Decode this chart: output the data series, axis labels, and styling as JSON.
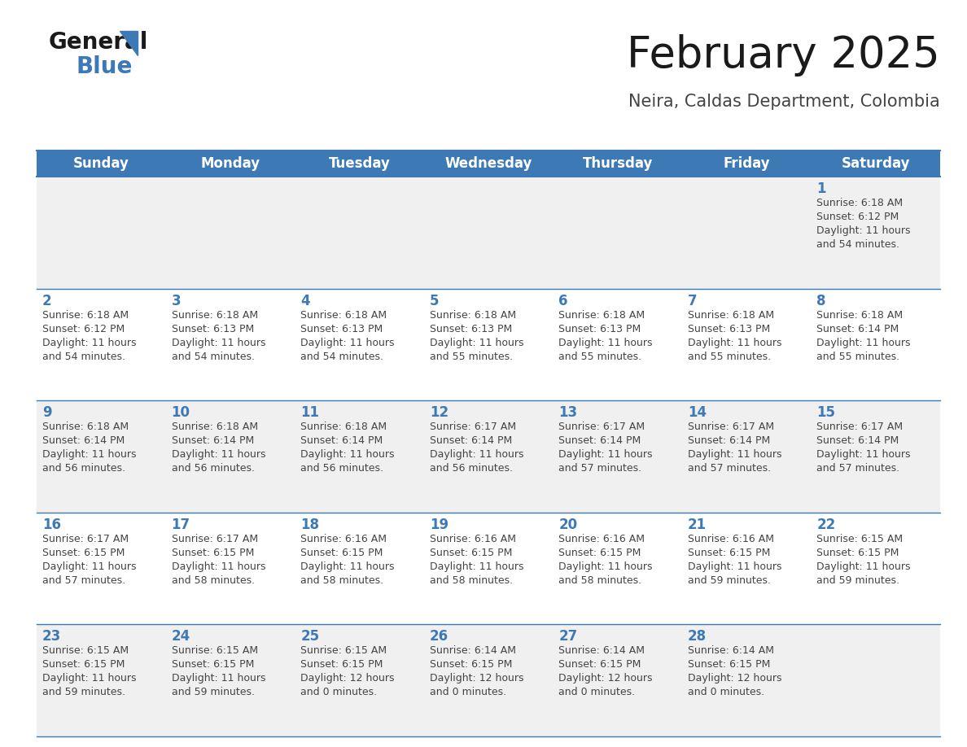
{
  "title": "February 2025",
  "subtitle": "Neira, Caldas Department, Colombia",
  "header_bg_color": "#3d7ab5",
  "header_text_color": "#ffffff",
  "row_bg_even": "#f0f0f0",
  "row_bg_odd": "#ffffff",
  "day_number_color": "#3d7ab5",
  "info_text_color": "#444444",
  "border_color": "#3d7ab5",
  "days_of_week": [
    "Sunday",
    "Monday",
    "Tuesday",
    "Wednesday",
    "Thursday",
    "Friday",
    "Saturday"
  ],
  "calendar_data": [
    [
      {
        "day": null,
        "sunrise": null,
        "sunset": null,
        "daylight_line1": null,
        "daylight_line2": null
      },
      {
        "day": null,
        "sunrise": null,
        "sunset": null,
        "daylight_line1": null,
        "daylight_line2": null
      },
      {
        "day": null,
        "sunrise": null,
        "sunset": null,
        "daylight_line1": null,
        "daylight_line2": null
      },
      {
        "day": null,
        "sunrise": null,
        "sunset": null,
        "daylight_line1": null,
        "daylight_line2": null
      },
      {
        "day": null,
        "sunrise": null,
        "sunset": null,
        "daylight_line1": null,
        "daylight_line2": null
      },
      {
        "day": null,
        "sunrise": null,
        "sunset": null,
        "daylight_line1": null,
        "daylight_line2": null
      },
      {
        "day": 1,
        "sunrise": "6:18 AM",
        "sunset": "6:12 PM",
        "daylight_line1": "11 hours",
        "daylight_line2": "and 54 minutes."
      }
    ],
    [
      {
        "day": 2,
        "sunrise": "6:18 AM",
        "sunset": "6:12 PM",
        "daylight_line1": "11 hours",
        "daylight_line2": "and 54 minutes."
      },
      {
        "day": 3,
        "sunrise": "6:18 AM",
        "sunset": "6:13 PM",
        "daylight_line1": "11 hours",
        "daylight_line2": "and 54 minutes."
      },
      {
        "day": 4,
        "sunrise": "6:18 AM",
        "sunset": "6:13 PM",
        "daylight_line1": "11 hours",
        "daylight_line2": "and 54 minutes."
      },
      {
        "day": 5,
        "sunrise": "6:18 AM",
        "sunset": "6:13 PM",
        "daylight_line1": "11 hours",
        "daylight_line2": "and 55 minutes."
      },
      {
        "day": 6,
        "sunrise": "6:18 AM",
        "sunset": "6:13 PM",
        "daylight_line1": "11 hours",
        "daylight_line2": "and 55 minutes."
      },
      {
        "day": 7,
        "sunrise": "6:18 AM",
        "sunset": "6:13 PM",
        "daylight_line1": "11 hours",
        "daylight_line2": "and 55 minutes."
      },
      {
        "day": 8,
        "sunrise": "6:18 AM",
        "sunset": "6:14 PM",
        "daylight_line1": "11 hours",
        "daylight_line2": "and 55 minutes."
      }
    ],
    [
      {
        "day": 9,
        "sunrise": "6:18 AM",
        "sunset": "6:14 PM",
        "daylight_line1": "11 hours",
        "daylight_line2": "and 56 minutes."
      },
      {
        "day": 10,
        "sunrise": "6:18 AM",
        "sunset": "6:14 PM",
        "daylight_line1": "11 hours",
        "daylight_line2": "and 56 minutes."
      },
      {
        "day": 11,
        "sunrise": "6:18 AM",
        "sunset": "6:14 PM",
        "daylight_line1": "11 hours",
        "daylight_line2": "and 56 minutes."
      },
      {
        "day": 12,
        "sunrise": "6:17 AM",
        "sunset": "6:14 PM",
        "daylight_line1": "11 hours",
        "daylight_line2": "and 56 minutes."
      },
      {
        "day": 13,
        "sunrise": "6:17 AM",
        "sunset": "6:14 PM",
        "daylight_line1": "11 hours",
        "daylight_line2": "and 57 minutes."
      },
      {
        "day": 14,
        "sunrise": "6:17 AM",
        "sunset": "6:14 PM",
        "daylight_line1": "11 hours",
        "daylight_line2": "and 57 minutes."
      },
      {
        "day": 15,
        "sunrise": "6:17 AM",
        "sunset": "6:14 PM",
        "daylight_line1": "11 hours",
        "daylight_line2": "and 57 minutes."
      }
    ],
    [
      {
        "day": 16,
        "sunrise": "6:17 AM",
        "sunset": "6:15 PM",
        "daylight_line1": "11 hours",
        "daylight_line2": "and 57 minutes."
      },
      {
        "day": 17,
        "sunrise": "6:17 AM",
        "sunset": "6:15 PM",
        "daylight_line1": "11 hours",
        "daylight_line2": "and 58 minutes."
      },
      {
        "day": 18,
        "sunrise": "6:16 AM",
        "sunset": "6:15 PM",
        "daylight_line1": "11 hours",
        "daylight_line2": "and 58 minutes."
      },
      {
        "day": 19,
        "sunrise": "6:16 AM",
        "sunset": "6:15 PM",
        "daylight_line1": "11 hours",
        "daylight_line2": "and 58 minutes."
      },
      {
        "day": 20,
        "sunrise": "6:16 AM",
        "sunset": "6:15 PM",
        "daylight_line1": "11 hours",
        "daylight_line2": "and 58 minutes."
      },
      {
        "day": 21,
        "sunrise": "6:16 AM",
        "sunset": "6:15 PM",
        "daylight_line1": "11 hours",
        "daylight_line2": "and 59 minutes."
      },
      {
        "day": 22,
        "sunrise": "6:15 AM",
        "sunset": "6:15 PM",
        "daylight_line1": "11 hours",
        "daylight_line2": "and 59 minutes."
      }
    ],
    [
      {
        "day": 23,
        "sunrise": "6:15 AM",
        "sunset": "6:15 PM",
        "daylight_line1": "11 hours",
        "daylight_line2": "and 59 minutes."
      },
      {
        "day": 24,
        "sunrise": "6:15 AM",
        "sunset": "6:15 PM",
        "daylight_line1": "11 hours",
        "daylight_line2": "and 59 minutes."
      },
      {
        "day": 25,
        "sunrise": "6:15 AM",
        "sunset": "6:15 PM",
        "daylight_line1": "12 hours",
        "daylight_line2": "and 0 minutes."
      },
      {
        "day": 26,
        "sunrise": "6:14 AM",
        "sunset": "6:15 PM",
        "daylight_line1": "12 hours",
        "daylight_line2": "and 0 minutes."
      },
      {
        "day": 27,
        "sunrise": "6:14 AM",
        "sunset": "6:15 PM",
        "daylight_line1": "12 hours",
        "daylight_line2": "and 0 minutes."
      },
      {
        "day": 28,
        "sunrise": "6:14 AM",
        "sunset": "6:15 PM",
        "daylight_line1": "12 hours",
        "daylight_line2": "and 0 minutes."
      },
      {
        "day": null,
        "sunrise": null,
        "sunset": null,
        "daylight_line1": null,
        "daylight_line2": null
      }
    ]
  ],
  "logo_color_general": "#1a1a1a",
  "logo_color_blue": "#3d7ab5",
  "title_fontsize": 38,
  "subtitle_fontsize": 15,
  "header_fontsize": 12,
  "day_number_fontsize": 12,
  "info_fontsize": 9
}
